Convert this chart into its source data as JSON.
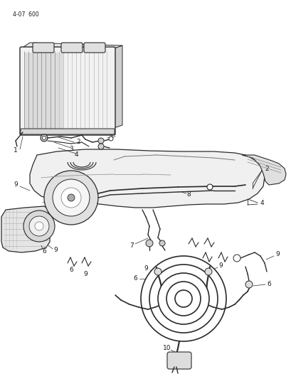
{
  "page_id": "4-07  600",
  "background_color": "#ffffff",
  "line_color": "#2a2a2a",
  "text_color": "#1a1a1a",
  "figsize": [
    4.1,
    5.33
  ],
  "dpi": 100
}
